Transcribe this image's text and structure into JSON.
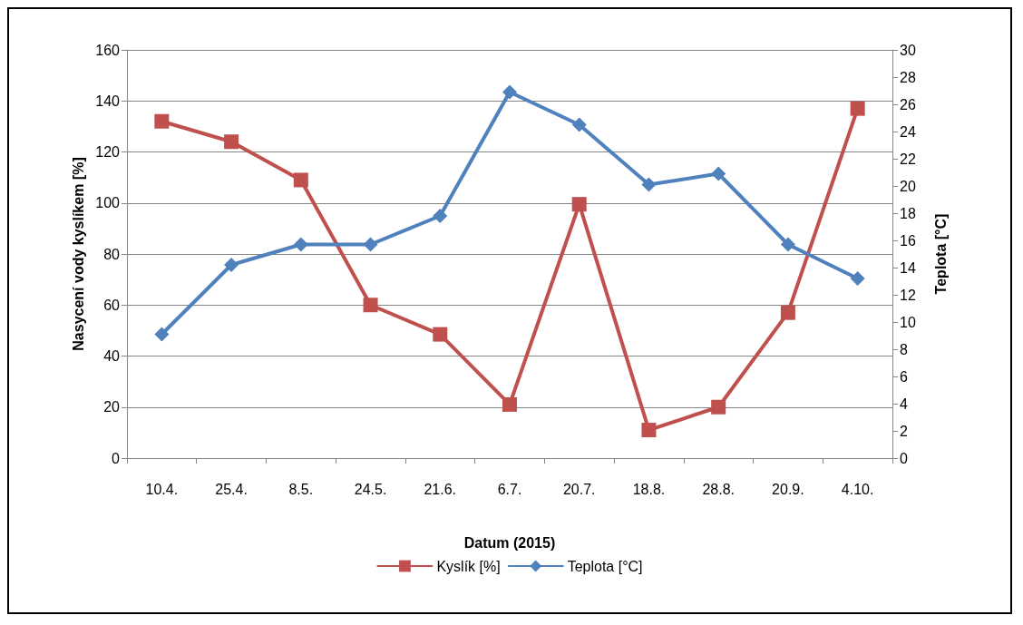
{
  "chart_data": {
    "type": "line",
    "xlabel": "Datum (2015)",
    "ylabel": "Nasycení vody kyslíkem [%]",
    "y2label": "Teplota [°C]",
    "categories": [
      "10.4.",
      "25.4.",
      "8.5.",
      "24.5.",
      "21.6.",
      "6.7.",
      "20.7.",
      "18.8.",
      "28.8.",
      "20.9.",
      "4.10."
    ],
    "series": [
      {
        "name": "Kyslík [%]",
        "color": "#c0504d",
        "marker": "square",
        "values": [
          132,
          124,
          109,
          60,
          48.5,
          21,
          99.5,
          11,
          20,
          57,
          137
        ]
      },
      {
        "name": "Teplota [°C]",
        "color": "#4f81bd",
        "marker": "diamond",
        "axis": "y2",
        "values": [
          9.1,
          14.2,
          15.7,
          15.7,
          17.8,
          26.9,
          24.5,
          20.1,
          20.9,
          15.7,
          13.2
        ]
      }
    ],
    "ylim": [
      0,
      160
    ],
    "yticks": [
      0,
      20,
      40,
      60,
      80,
      100,
      120,
      140,
      160
    ],
    "y2lim": [
      0,
      30
    ],
    "y2ticks": [
      0,
      2,
      4,
      6,
      8,
      10,
      12,
      14,
      16,
      18,
      20,
      22,
      24,
      26,
      28,
      30
    ],
    "grid": "y",
    "legend": "bottom",
    "line_style": "solid"
  }
}
